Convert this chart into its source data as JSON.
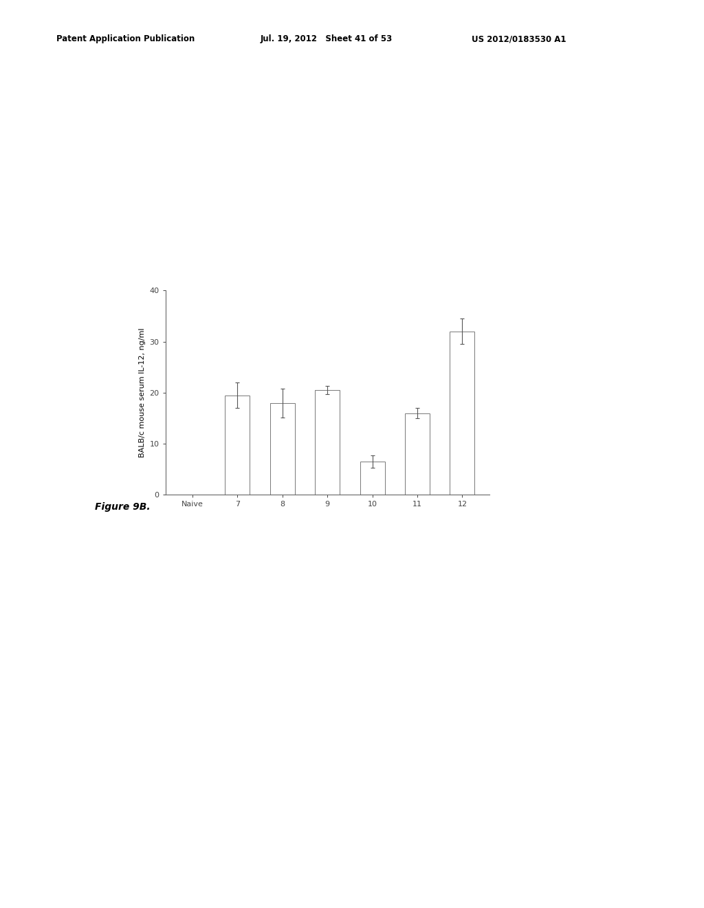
{
  "header_left": "Patent Application Publication",
  "header_mid": "Jul. 19, 2012   Sheet 41 of 53",
  "header_right": "US 2012/0183530 A1",
  "categories": [
    "Naive",
    "7",
    "8",
    "9",
    "10",
    "11",
    "12"
  ],
  "values": [
    0.0,
    19.5,
    18.0,
    20.5,
    6.5,
    16.0,
    32.0
  ],
  "errors": [
    0.0,
    2.5,
    2.8,
    0.8,
    1.2,
    1.0,
    2.5
  ],
  "ylabel": "BALB/c mouse serum IL-12, ng/ml",
  "ylim": [
    0,
    40
  ],
  "yticks": [
    0,
    10,
    20,
    30,
    40
  ],
  "figure_label": "Figure 9B.",
  "bar_color": "#ffffff",
  "bar_edgecolor": "#777777",
  "background_color": "#ffffff",
  "bar_width": 0.55,
  "figure_label_fontsize": 10,
  "axis_fontsize": 8,
  "tick_fontsize": 8,
  "header_fontsize": 8.5
}
